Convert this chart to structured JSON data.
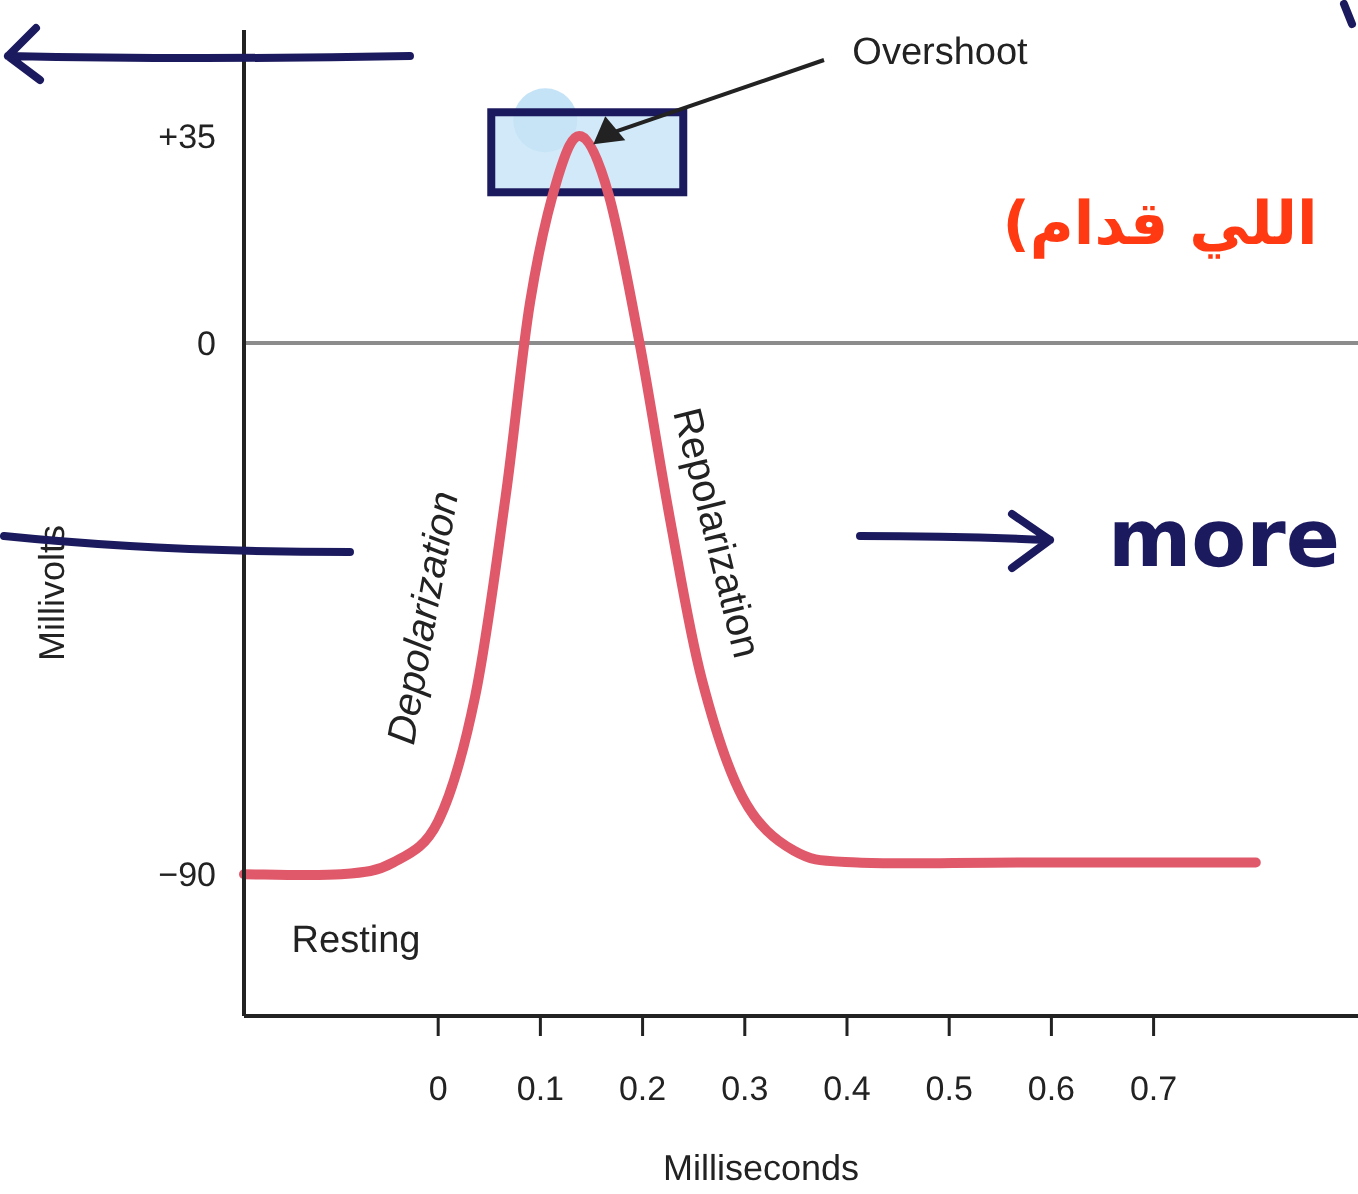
{
  "chart_data": {
    "type": "line",
    "xlabel": "Milliseconds",
    "ylabel": "Millivolts",
    "xlim": [
      -0.19,
      0.9
    ],
    "ylim": [
      -114,
      53
    ],
    "xticks": [
      0,
      0.1,
      0.2,
      0.3,
      0.4,
      0.5,
      0.6,
      0.7
    ],
    "yticks": [
      {
        "value": 35,
        "label": "+35"
      },
      0,
      {
        "value": -90,
        "label": "−90"
      }
    ],
    "ref_lines": [
      {
        "axis": "y",
        "value": 0,
        "color": "#8c8c8c"
      }
    ],
    "series": [
      {
        "color": "#e0596a",
        "x": [
          -0.19,
          -0.095,
          -0.044,
          0,
          0.036,
          0.066,
          0.09,
          0.117,
          0.14,
          0.167,
          0.197,
          0.227,
          0.258,
          0.298,
          0.348,
          0.41,
          0.57,
          0.8
        ],
        "values": [
          -90,
          -90,
          -88,
          -81,
          -60,
          -26,
          7,
          28,
          35,
          25,
          0,
          -30,
          -57,
          -77,
          -86,
          -88,
          -88,
          -88
        ]
      }
    ],
    "annotations": [
      "Overshoot",
      "Depolarization",
      "Repolarization",
      "Resting",
      "more",
      "اللي قدام)"
    ]
  }
}
